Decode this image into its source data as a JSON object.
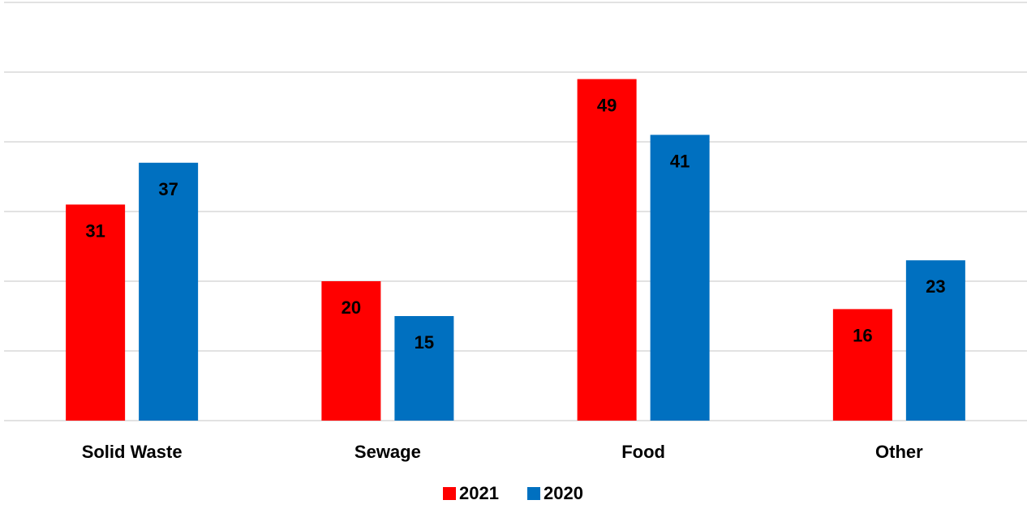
{
  "chart_data": {
    "type": "bar",
    "categories": [
      "Solid Waste",
      "Sewage",
      "Food",
      "Other"
    ],
    "series": [
      {
        "name": "2021",
        "values": [
          31,
          20,
          49,
          16
        ],
        "color": "#ff0000"
      },
      {
        "name": "2020",
        "values": [
          37,
          15,
          41,
          23
        ],
        "color": "#0070c0"
      }
    ],
    "title": "",
    "xlabel": "",
    "ylabel": "",
    "ylim": [
      0,
      60
    ],
    "grid": true,
    "gridline_step": 10,
    "legend_position": "bottom",
    "data_labels": true
  }
}
